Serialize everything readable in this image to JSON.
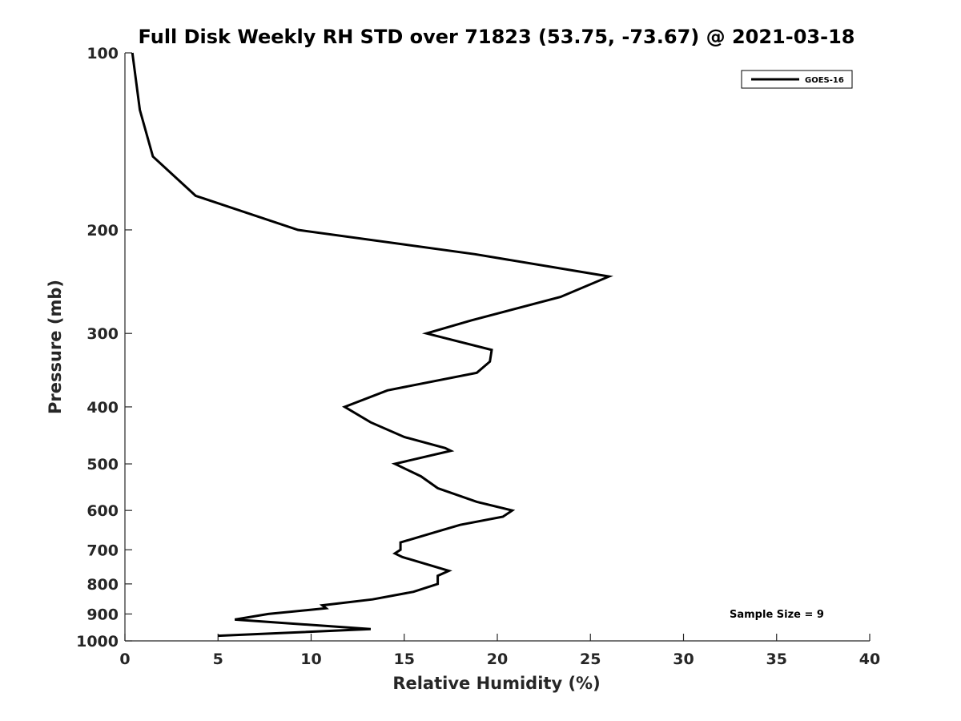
{
  "chart_data": {
    "type": "line",
    "title": "Full Disk Weekly RH STD over 71823 (53.75, -73.67) @ 2021-03-18",
    "xlabel": "Relative Humidity (%)",
    "ylabel": "Pressure (mb)",
    "xlim": [
      0,
      40
    ],
    "ylim": [
      1000,
      100
    ],
    "y_scale": "log",
    "x_ticks": [
      0,
      5,
      10,
      15,
      20,
      25,
      30,
      35,
      40
    ],
    "y_ticks": [
      100,
      200,
      300,
      400,
      500,
      600,
      700,
      800,
      900,
      1000
    ],
    "grid": false,
    "legend_position": "top-right",
    "series": [
      {
        "name": "GOES-16",
        "color": "#000000",
        "points": [
          [
            0.4,
            100
          ],
          [
            0.8,
            125
          ],
          [
            1.5,
            150
          ],
          [
            3.8,
            175
          ],
          [
            9.3,
            200
          ],
          [
            18.8,
            220
          ],
          [
            26.0,
            240
          ],
          [
            23.4,
            260
          ],
          [
            18.6,
            285
          ],
          [
            16.2,
            300
          ],
          [
            19.7,
            320
          ],
          [
            19.6,
            335
          ],
          [
            18.9,
            350
          ],
          [
            14.1,
            375
          ],
          [
            11.8,
            400
          ],
          [
            13.2,
            425
          ],
          [
            15.0,
            450
          ],
          [
            17.2,
            470
          ],
          [
            17.5,
            475
          ],
          [
            14.5,
            500
          ],
          [
            15.9,
            525
          ],
          [
            16.8,
            550
          ],
          [
            18.9,
            580
          ],
          [
            20.8,
            600
          ],
          [
            20.3,
            615
          ],
          [
            18.0,
            635
          ],
          [
            16.9,
            650
          ],
          [
            14.8,
            680
          ],
          [
            14.8,
            700
          ],
          [
            14.5,
            710
          ],
          [
            14.9,
            720
          ],
          [
            17.4,
            760
          ],
          [
            16.8,
            775
          ],
          [
            16.8,
            800
          ],
          [
            15.5,
            825
          ],
          [
            13.3,
            850
          ],
          [
            10.6,
            870
          ],
          [
            10.8,
            880
          ],
          [
            7.7,
            900
          ],
          [
            5.9,
            920
          ],
          [
            13.2,
            955
          ],
          [
            5.0,
            980
          ]
        ]
      }
    ],
    "annotations": [
      {
        "text": "Sample Size = 9"
      }
    ]
  }
}
